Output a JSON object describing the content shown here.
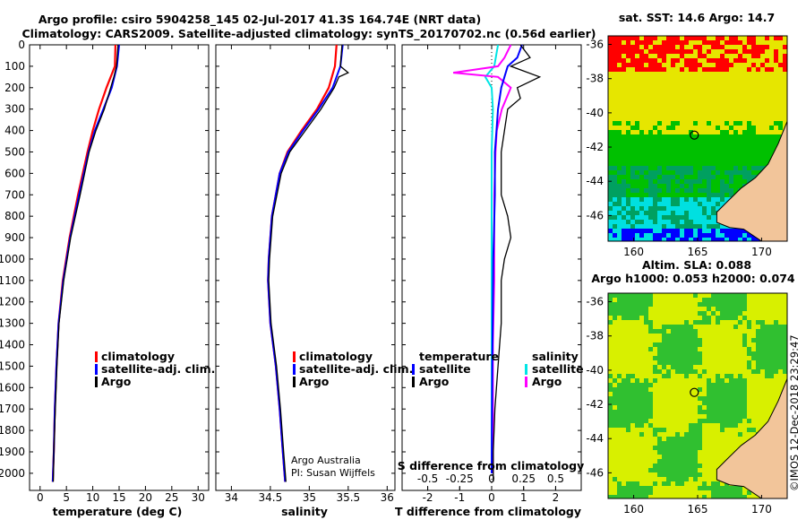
{
  "header": {
    "line1": "Argo profile: csiro 5904258_145 02-Jul-2017 41.3S 164.74E (NRT data)",
    "line2": "Climatology: CARS2009. Satellite-adjusted climatology: synTS_20170702.nc (0.56d earlier)"
  },
  "colors": {
    "climatology": "#ff0000",
    "satellite": "#0000ff",
    "argo": "#000000",
    "sal_satellite": "#00e5e5",
    "sal_argo": "#ff00ff",
    "sst_red": "#ff0000",
    "sst_yellow": "#e6e600",
    "sst_green": "#00c000",
    "sst_teal": "#00a060",
    "sst_cyan": "#00e0e0",
    "sst_blue": "#0000ff",
    "sla_green": "#30c030",
    "sla_yellow": "#d8f000",
    "land": "#f2c59a"
  },
  "chart_data": [
    {
      "type": "line",
      "panel": "temperature",
      "xlabel": "temperature (deg C)",
      "ylabel": "",
      "xlim": [
        -2,
        32
      ],
      "ylim": [
        2080,
        0
      ],
      "xticks": [
        "0",
        "5",
        "10",
        "15",
        "20",
        "25",
        "30"
      ],
      "yticks": [
        "0",
        "100",
        "200",
        "300",
        "400",
        "500",
        "600",
        "700",
        "800",
        "900",
        "1000",
        "1100",
        "1200",
        "1300",
        "1400",
        "1500",
        "1600",
        "1700",
        "1800",
        "1900",
        "2000"
      ],
      "legend": [
        "climatology",
        "satellite-adj. clim.",
        "Argo"
      ],
      "series": [
        {
          "name": "climatology",
          "depth": [
            0,
            100,
            200,
            300,
            400,
            500,
            700,
            900,
            1100,
            1300,
            1500,
            1700,
            1900,
            2040
          ],
          "values": [
            14.3,
            14.2,
            12.6,
            11.2,
            10.0,
            9.0,
            7.2,
            5.6,
            4.3,
            3.5,
            3.1,
            2.8,
            2.6,
            2.4
          ]
        },
        {
          "name": "satellite-adj. clim.",
          "depth": [
            0,
            100,
            200,
            300,
            400,
            500,
            700,
            900,
            1100,
            1300,
            1500,
            1700,
            1900,
            2040
          ],
          "values": [
            15.0,
            14.6,
            13.6,
            12.0,
            10.4,
            9.2,
            7.4,
            5.7,
            4.4,
            3.5,
            3.1,
            2.8,
            2.6,
            2.4
          ]
        },
        {
          "name": "Argo",
          "depth": [
            0,
            100,
            150,
            200,
            300,
            400,
            500,
            700,
            900,
            1100,
            1300,
            1500,
            1700,
            1900,
            2040
          ],
          "values": [
            14.8,
            14.5,
            14.0,
            13.4,
            12.2,
            10.6,
            9.3,
            7.6,
            5.8,
            4.5,
            3.6,
            3.2,
            2.9,
            2.6,
            2.5
          ]
        }
      ]
    },
    {
      "type": "line",
      "panel": "salinity",
      "xlabel": "salinity",
      "xlim": [
        33.8,
        36.1
      ],
      "ylim": [
        2080,
        0
      ],
      "xticks": [
        "34",
        "34.5",
        "35",
        "35.5",
        "36"
      ],
      "legend": [
        "climatology",
        "satellite-adj. clim.",
        "Argo"
      ],
      "annotation": [
        "Argo Australia",
        "PI: Susan Wijffels"
      ],
      "series": [
        {
          "name": "climatology",
          "depth": [
            0,
            100,
            200,
            300,
            400,
            500,
            600,
            800,
            1000,
            1100,
            1300,
            1500,
            1700,
            1900,
            2040
          ],
          "values": [
            35.35,
            35.33,
            35.25,
            35.1,
            34.9,
            34.72,
            34.62,
            34.52,
            34.48,
            34.47,
            34.5,
            34.57,
            34.62,
            34.66,
            34.69
          ]
        },
        {
          "name": "satellite-adj. clim.",
          "depth": [
            0,
            100,
            200,
            300,
            400,
            500,
            600,
            800,
            1000,
            1100,
            1300,
            1500,
            1700,
            1900,
            2040
          ],
          "values": [
            35.43,
            35.4,
            35.3,
            35.12,
            34.92,
            34.73,
            34.62,
            34.52,
            34.48,
            34.47,
            34.5,
            34.57,
            34.62,
            34.66,
            34.69
          ]
        },
        {
          "name": "Argo",
          "depth": [
            0,
            100,
            130,
            150,
            200,
            300,
            400,
            500,
            600,
            800,
            1000,
            1100,
            1300,
            1500,
            1700,
            1900,
            2040
          ],
          "values": [
            35.42,
            35.4,
            35.5,
            35.38,
            35.32,
            35.15,
            34.95,
            34.75,
            34.64,
            34.53,
            34.49,
            34.48,
            34.51,
            34.58,
            34.63,
            34.67,
            34.7
          ]
        }
      ]
    },
    {
      "type": "line",
      "panel": "difference",
      "xlabel": "T difference from climatology",
      "xlabel2": "S difference from climatology",
      "xlim": [
        -2.8,
        2.8
      ],
      "ylim": [
        2080,
        0
      ],
      "xticks": [
        "-2",
        "-1",
        "0",
        "1",
        "2"
      ],
      "sticks": [
        "-0.5",
        "-0.25",
        "0",
        "0.25",
        "0.5"
      ],
      "legend_temperature": {
        "title": "temperature",
        "items": [
          "satellite",
          "Argo"
        ]
      },
      "legend_salinity": {
        "title": "salinity",
        "items": [
          "satellite",
          "Argo"
        ]
      },
      "series": [
        {
          "name": "T satellite",
          "depth": [
            0,
            60,
            100,
            150,
            200,
            300,
            400,
            500,
            700,
            1000,
            1500,
            2000
          ],
          "values": [
            0.95,
            0.8,
            0.5,
            0.4,
            0.3,
            0.2,
            0.15,
            0.1,
            0.1,
            0.05,
            0.02,
            0.0
          ]
        },
        {
          "name": "T Argo",
          "depth": [
            0,
            60,
            100,
            150,
            200,
            250,
            300,
            400,
            500,
            700,
            800,
            900,
            1000,
            1100,
            1300,
            1500,
            1700,
            1900,
            2040
          ],
          "values": [
            0.9,
            1.2,
            0.6,
            1.5,
            0.8,
            0.9,
            0.5,
            0.4,
            0.3,
            0.3,
            0.5,
            0.6,
            0.4,
            0.3,
            0.3,
            0.2,
            0.1,
            0.05,
            0.05
          ]
        },
        {
          "name": "S satellite",
          "depth": [
            0,
            100,
            150,
            200,
            300,
            500,
            800,
            1000,
            1500,
            2000
          ],
          "values": [
            0.05,
            0.02,
            -0.05,
            0.0,
            0.01,
            0.0,
            0.0,
            0.0,
            0.0,
            0.0
          ]
        },
        {
          "name": "S Argo",
          "depth": [
            0,
            60,
            100,
            130,
            150,
            200,
            300,
            400,
            500,
            700,
            900,
            1100,
            1400,
            1700,
            2000
          ],
          "values": [
            0.15,
            0.1,
            0.05,
            -0.3,
            0.05,
            0.15,
            0.08,
            0.04,
            0.03,
            0.02,
            0.02,
            0.02,
            0.01,
            0.01,
            0.01
          ]
        }
      ]
    },
    {
      "type": "heatmap",
      "panel": "sst_map",
      "title": "sat. SST: 14.6 Argo: 14.7",
      "xticks": [
        "160",
        "165",
        "170"
      ],
      "yticks": [
        "-36",
        "-38",
        "-40",
        "-42",
        "-44",
        "-46"
      ],
      "xlim": [
        158,
        172
      ],
      "ylim": [
        -47.5,
        -35.5
      ],
      "argo_lon": 164.74,
      "argo_lat": -41.3
    },
    {
      "type": "heatmap",
      "panel": "sla_map",
      "title": "Altim. SLA: 0.088",
      "subtitle": "Argo h1000: 0.053 h2000: 0.074",
      "xticks": [
        "160",
        "165",
        "170"
      ],
      "yticks": [
        "-36",
        "-38",
        "-40",
        "-42",
        "-44",
        "-46"
      ],
      "xlim": [
        158,
        172
      ],
      "ylim": [
        -47.5,
        -35.5
      ],
      "argo_lon": 164.74,
      "argo_lat": -41.3
    }
  ],
  "credit": "©IMOS 12-Dec-2018 23:29:47"
}
